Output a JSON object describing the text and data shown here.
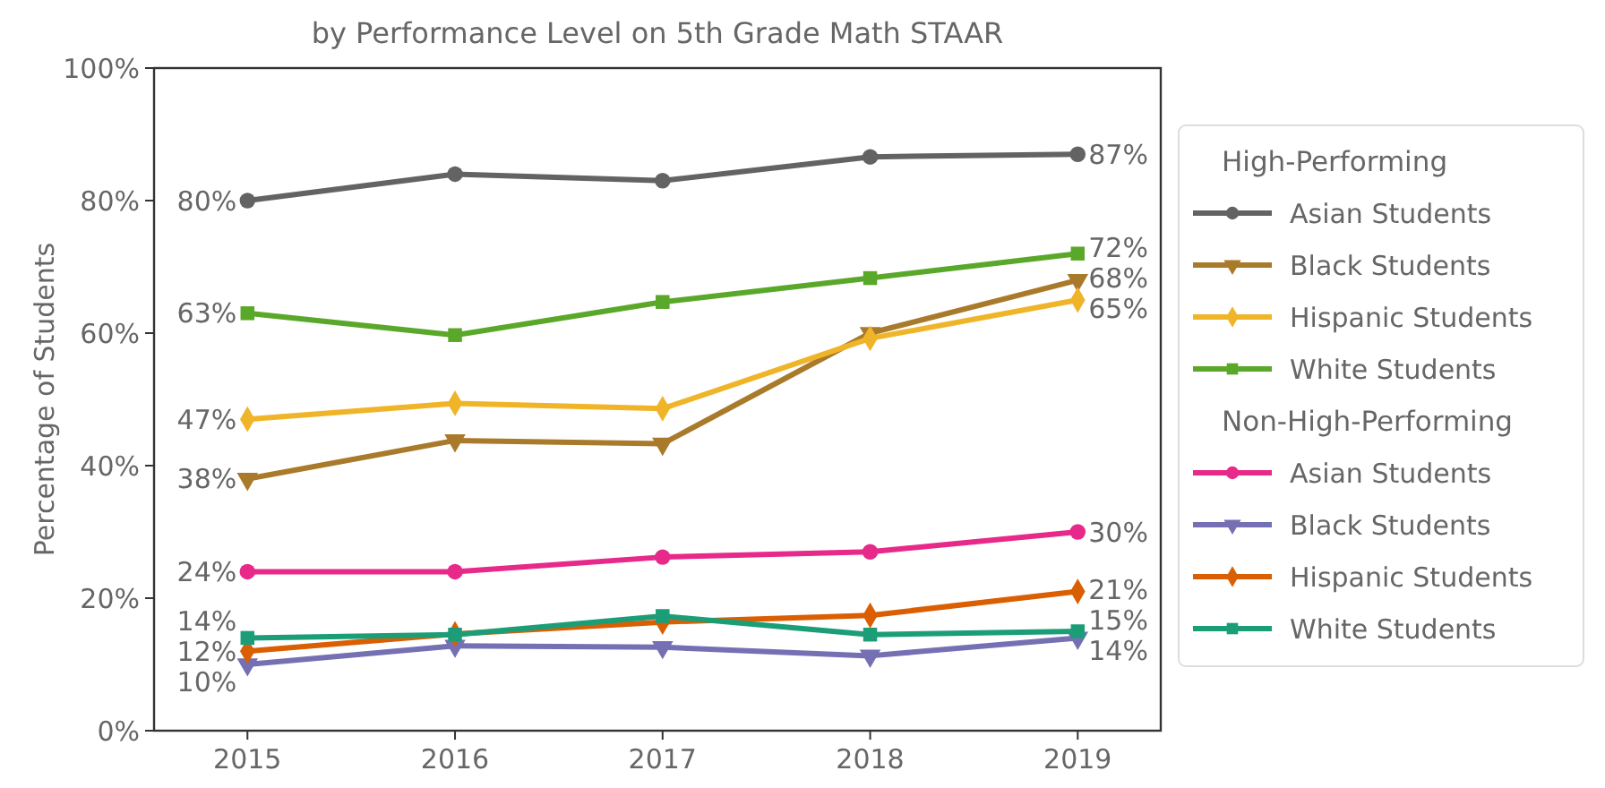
{
  "chart_data": {
    "type": "line",
    "title": "by Performance Level on 5th Grade Math STAAR",
    "ylabel": "Percentage of Students",
    "x": [
      2015,
      2016,
      2017,
      2018,
      2019
    ],
    "xlim": [
      2014.55,
      2019.4
    ],
    "xticks": [
      2015,
      2016,
      2017,
      2018,
      2019
    ],
    "ylim": [
      0,
      100
    ],
    "yticks": [
      {
        "value": 0,
        "label": "0%"
      },
      {
        "value": 20,
        "label": "20%"
      },
      {
        "value": 40,
        "label": "40%"
      },
      {
        "value": 60,
        "label": "60%"
      },
      {
        "value": 80,
        "label": "80%"
      },
      {
        "value": 100,
        "label": "100%"
      }
    ],
    "grid": false,
    "legend": "right",
    "legend_title": [
      "High-Performing",
      "Non-High-Performing"
    ],
    "line_style": "solid",
    "series": [
      {
        "name": "Asian Students",
        "marker": "circle",
        "color": "#636363",
        "values": [
          80,
          84,
          83,
          86.6,
          87
        ],
        "value_labels": [
          "80%",
          null,
          null,
          null,
          "87%"
        ]
      },
      {
        "name": "Black Students",
        "marker": "triangle",
        "color": "#a87a2a",
        "values": [
          38,
          43.8,
          43.3,
          60,
          68
        ],
        "value_labels": [
          "38%",
          null,
          null,
          null,
          "68%"
        ]
      },
      {
        "name": "Hispanic Students",
        "marker": "diamond",
        "color": "#f0b428",
        "values": [
          47,
          49.4,
          48.6,
          59.2,
          65
        ],
        "value_labels": [
          "47%",
          null,
          null,
          null,
          "65%"
        ]
      },
      {
        "name": "White Students",
        "marker": "square",
        "color": "#5aa82a",
        "values": [
          63,
          59.7,
          64.7,
          68.3,
          72
        ],
        "value_labels": [
          "63%",
          null,
          null,
          null,
          "72%"
        ]
      },
      {
        "name": "Asian Students",
        "marker": "circle",
        "color": "#e7298a",
        "values": [
          24,
          24,
          26.2,
          27,
          30
        ],
        "value_labels": [
          "24%",
          null,
          null,
          null,
          "30%"
        ]
      },
      {
        "name": "Black Students",
        "marker": "triangle",
        "color": "#7570b3",
        "values": [
          10,
          12.8,
          12.6,
          11.3,
          14
        ],
        "value_labels": [
          "10%",
          null,
          null,
          null,
          "14%"
        ]
      },
      {
        "name": "Hispanic Students",
        "marker": "diamond",
        "color": "#d95f02",
        "values": [
          12,
          14.6,
          16.4,
          17.4,
          21
        ],
        "value_labels": [
          "12%",
          null,
          null,
          null,
          "21%"
        ]
      },
      {
        "name": "White Students",
        "marker": "square",
        "color": "#1b9e77",
        "values": [
          14,
          14.5,
          17.3,
          14.5,
          15
        ],
        "value_labels": [
          "14%",
          null,
          null,
          null,
          "15%"
        ]
      }
    ]
  }
}
